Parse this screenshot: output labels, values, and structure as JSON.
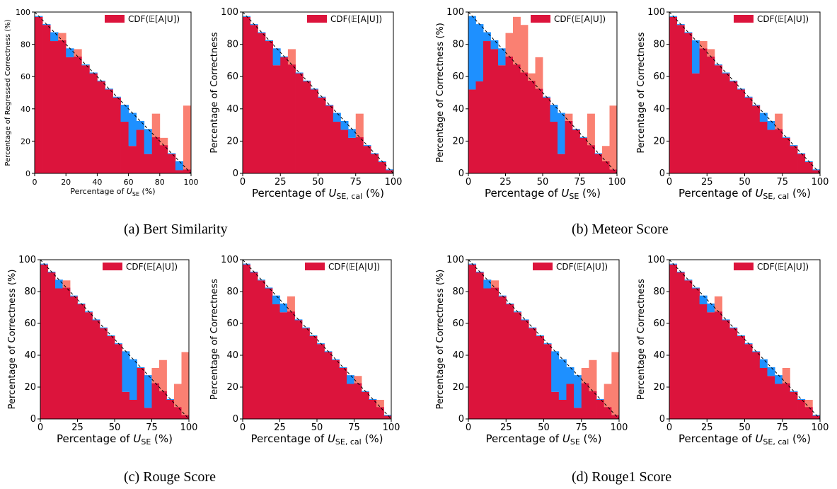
{
  "captions": [
    "(a) Bert Similarity",
    "(b) Meteor Score",
    "(c) Rouge Score",
    "(d) Rouge1 Score"
  ],
  "legend_label": "CDF(𝔼[A|U])",
  "colors": {
    "cdf": "#dc143c",
    "over": "#fa8072",
    "under": "#1e90ff",
    "diag": "#000000"
  },
  "chart_data": [
    {
      "type": "bar",
      "subplot": "a-left",
      "xlabel": "Percentage of U_SE (%)",
      "ylabel": "Percentage of Regressed Correctness (%)",
      "xlim": [
        0,
        100
      ],
      "ylim": [
        0,
        100
      ],
      "xticks": [
        0,
        20,
        40,
        60,
        80,
        100
      ],
      "yticks": [
        0,
        20,
        40,
        60,
        80,
        100
      ],
      "legend": "top-right",
      "bins": 20,
      "values": [
        97,
        92,
        82,
        87,
        72,
        77,
        67,
        62,
        57,
        52,
        47,
        32,
        17,
        27,
        12,
        37,
        22,
        12,
        2,
        42
      ]
    },
    {
      "type": "bar",
      "subplot": "a-right",
      "xlabel": "Percentage of U_SE,cal (%)",
      "ylabel": "Percentage of Correctness",
      "xlim": [
        0,
        100
      ],
      "ylim": [
        0,
        100
      ],
      "xticks": [
        0,
        25,
        50,
        75,
        100
      ],
      "yticks": [
        0,
        20,
        40,
        60,
        80,
        100
      ],
      "legend": "top-right",
      "bins": 20,
      "values": [
        97,
        92,
        87,
        82,
        67,
        72,
        77,
        62,
        57,
        52,
        47,
        42,
        32,
        27,
        22,
        37,
        17,
        12,
        7,
        2
      ]
    },
    {
      "type": "bar",
      "subplot": "b-left",
      "xlabel": "Percentage of U_SE (%)",
      "ylabel": "Percentage of Correctness (%)",
      "xlim": [
        0,
        100
      ],
      "ylim": [
        0,
        100
      ],
      "xticks": [
        0,
        25,
        50,
        75,
        100
      ],
      "yticks": [
        0,
        20,
        40,
        60,
        80,
        100
      ],
      "legend": "top-right",
      "bins": 20,
      "values": [
        52,
        57,
        82,
        77,
        67,
        87,
        97,
        92,
        62,
        72,
        47,
        32,
        12,
        37,
        27,
        22,
        37,
        12,
        17,
        42
      ]
    },
    {
      "type": "bar",
      "subplot": "b-right",
      "xlabel": "Percentage of U_SE,cal (%)",
      "ylabel": "Percentage of Correctness",
      "xlim": [
        0,
        100
      ],
      "ylim": [
        0,
        100
      ],
      "xticks": [
        0,
        25,
        50,
        75,
        100
      ],
      "yticks": [
        0,
        20,
        40,
        60,
        80,
        100
      ],
      "legend": "top-right",
      "bins": 20,
      "values": [
        97,
        92,
        87,
        62,
        82,
        77,
        67,
        62,
        57,
        52,
        47,
        42,
        32,
        27,
        37,
        22,
        17,
        12,
        7,
        2
      ]
    },
    {
      "type": "bar",
      "subplot": "c-left",
      "xlabel": "Percentage of U_SE (%)",
      "ylabel": "Percentage of Correctness (%)",
      "xlim": [
        0,
        100
      ],
      "ylim": [
        0,
        100
      ],
      "xticks": [
        0,
        25,
        50,
        75,
        100
      ],
      "yticks": [
        0,
        20,
        40,
        60,
        80,
        100
      ],
      "legend": "top-right",
      "bins": 20,
      "values": [
        97,
        92,
        82,
        87,
        77,
        72,
        67,
        62,
        57,
        52,
        47,
        17,
        12,
        32,
        7,
        32,
        37,
        12,
        22,
        42
      ]
    },
    {
      "type": "bar",
      "subplot": "c-right",
      "xlabel": "Percentage of U_SE,cal (%)",
      "ylabel": "Percentage of Correctness",
      "xlim": [
        0,
        100
      ],
      "ylim": [
        0,
        100
      ],
      "xticks": [
        0,
        25,
        50,
        75,
        100
      ],
      "yticks": [
        0,
        20,
        40,
        60,
        80,
        100
      ],
      "legend": "top-right",
      "bins": 20,
      "values": [
        97,
        92,
        87,
        82,
        72,
        67,
        77,
        62,
        57,
        52,
        47,
        42,
        37,
        32,
        22,
        27,
        17,
        12,
        12,
        2
      ]
    },
    {
      "type": "bar",
      "subplot": "d-left",
      "xlabel": "Percentage of U_SE (%)",
      "ylabel": "Percentage of Correctness (%)",
      "xlim": [
        0,
        100
      ],
      "ylim": [
        0,
        100
      ],
      "xticks": [
        0,
        25,
        50,
        75,
        100
      ],
      "yticks": [
        0,
        20,
        40,
        60,
        80,
        100
      ],
      "legend": "top-right",
      "bins": 20,
      "values": [
        97,
        92,
        82,
        87,
        77,
        72,
        67,
        62,
        57,
        52,
        47,
        17,
        12,
        22,
        7,
        32,
        37,
        12,
        22,
        42
      ]
    },
    {
      "type": "bar",
      "subplot": "d-right",
      "xlabel": "Percentage of U_SE,cal (%)",
      "ylabel": "Percentage of Correctness",
      "xlim": [
        0,
        100
      ],
      "ylim": [
        0,
        100
      ],
      "xticks": [
        0,
        25,
        50,
        75,
        100
      ],
      "yticks": [
        0,
        20,
        40,
        60,
        80,
        100
      ],
      "legend": "top-right",
      "bins": 20,
      "values": [
        97,
        92,
        87,
        82,
        72,
        67,
        77,
        62,
        57,
        52,
        47,
        42,
        32,
        27,
        22,
        32,
        17,
        12,
        12,
        2
      ]
    }
  ]
}
